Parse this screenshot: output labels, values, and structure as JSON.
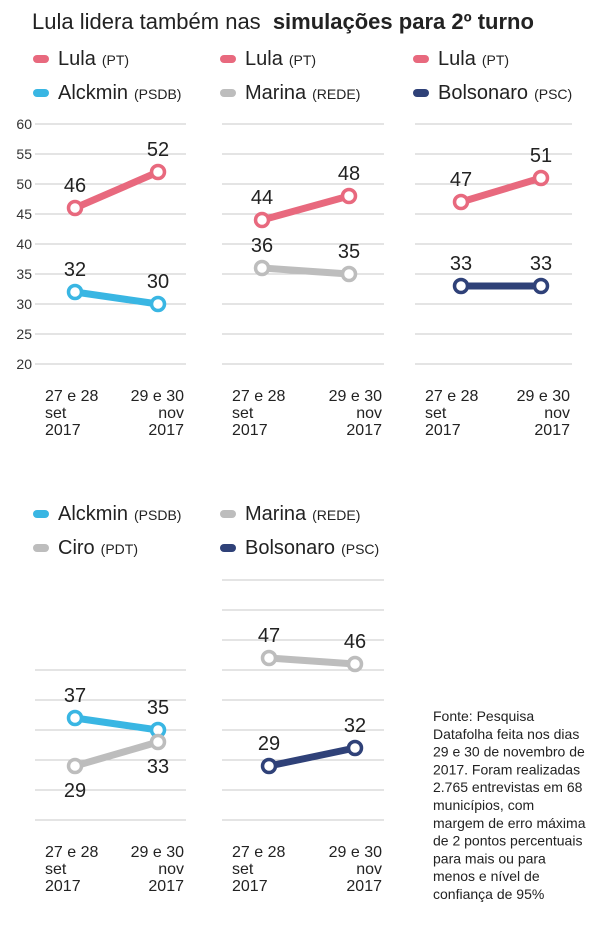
{
  "title": {
    "prefix": "Lula lidera também nas",
    "bold": "simulações para 2º turno"
  },
  "colors": {
    "lula": "#e8697e",
    "alckmin": "#39b6e3",
    "marina": "#bdbdbd",
    "bolsonaro": "#2f4178",
    "ciro": "#bdbdbd"
  },
  "source": [
    "Fonte: Pesquisa",
    "Datafolha feita nos dias",
    "29 e 30 de novembro de",
    "2017. Foram realizadas",
    "2.765 entrevistas em 68",
    "municípios, com",
    "margem de erro máxima",
    "de 2 pontos percentuais",
    "para mais ou para",
    "menos e nível de",
    "confiança de 95%"
  ],
  "chart_data": [
    {
      "type": "line",
      "title": "Lula x Alckmin",
      "categories": [
        "27 e 28 set 2017",
        "29 e 30 nov 2017"
      ],
      "ylim": [
        20,
        60
      ],
      "yticks": [
        "60",
        "55",
        "50",
        "45",
        "40",
        "35",
        "30",
        "25",
        "20"
      ],
      "legend": [
        {
          "name": "Lula",
          "party": "(PT)",
          "color_key": "lula"
        },
        {
          "name": "Alckmin",
          "party": "(PSDB)",
          "color_key": "alckmin"
        }
      ],
      "series": [
        {
          "name": "Lula",
          "color_key": "lula",
          "values": [
            46,
            52
          ]
        },
        {
          "name": "Alckmin",
          "color_key": "alckmin",
          "values": [
            32,
            30
          ]
        }
      ]
    },
    {
      "type": "line",
      "title": "Lula x Marina",
      "categories": [
        "27 e 28 set 2017",
        "29 e 30 nov 2017"
      ],
      "ylim": [
        20,
        60
      ],
      "legend": [
        {
          "name": "Lula",
          "party": "(PT)",
          "color_key": "lula"
        },
        {
          "name": "Marina",
          "party": "(REDE)",
          "color_key": "marina"
        }
      ],
      "series": [
        {
          "name": "Lula",
          "color_key": "lula",
          "values": [
            44,
            48
          ]
        },
        {
          "name": "Marina",
          "color_key": "marina",
          "values": [
            36,
            35
          ]
        }
      ]
    },
    {
      "type": "line",
      "title": "Lula x Bolsonaro",
      "categories": [
        "27 e 28 set 2017",
        "29 e 30 nov 2017"
      ],
      "ylim": [
        20,
        60
      ],
      "legend": [
        {
          "name": "Lula",
          "party": "(PT)",
          "color_key": "lula"
        },
        {
          "name": "Bolsonaro",
          "party": "(PSC)",
          "color_key": "bolsonaro"
        }
      ],
      "series": [
        {
          "name": "Lula",
          "color_key": "lula",
          "values": [
            47,
            51
          ]
        },
        {
          "name": "Bolsonaro",
          "color_key": "bolsonaro",
          "values": [
            33,
            33
          ]
        }
      ]
    },
    {
      "type": "line",
      "title": "Alckmin x Ciro",
      "categories": [
        "27 e 28 set 2017",
        "29 e 30 nov 2017"
      ],
      "ylim": [
        20,
        60
      ],
      "legend": [
        {
          "name": "Alckmin",
          "party": "(PSDB)",
          "color_key": "alckmin"
        },
        {
          "name": "Ciro",
          "party": "(PDT)",
          "color_key": "ciro"
        }
      ],
      "series": [
        {
          "name": "Alckmin",
          "color_key": "alckmin",
          "values": [
            37,
            35
          ]
        },
        {
          "name": "Ciro",
          "color_key": "ciro",
          "values": [
            29,
            33
          ]
        }
      ]
    },
    {
      "type": "line",
      "title": "Marina x Bolsonaro",
      "categories": [
        "27 e 28 set 2017",
        "29 e 30 nov 2017"
      ],
      "ylim": [
        20,
        60
      ],
      "legend": [
        {
          "name": "Marina",
          "party": "(REDE)",
          "color_key": "marina"
        },
        {
          "name": "Bolsonaro",
          "party": "(PSC)",
          "color_key": "bolsonaro"
        }
      ],
      "series": [
        {
          "name": "Marina",
          "color_key": "marina",
          "values": [
            47,
            46
          ]
        },
        {
          "name": "Bolsonaro",
          "color_key": "bolsonaro",
          "values": [
            29,
            32
          ]
        }
      ]
    }
  ]
}
